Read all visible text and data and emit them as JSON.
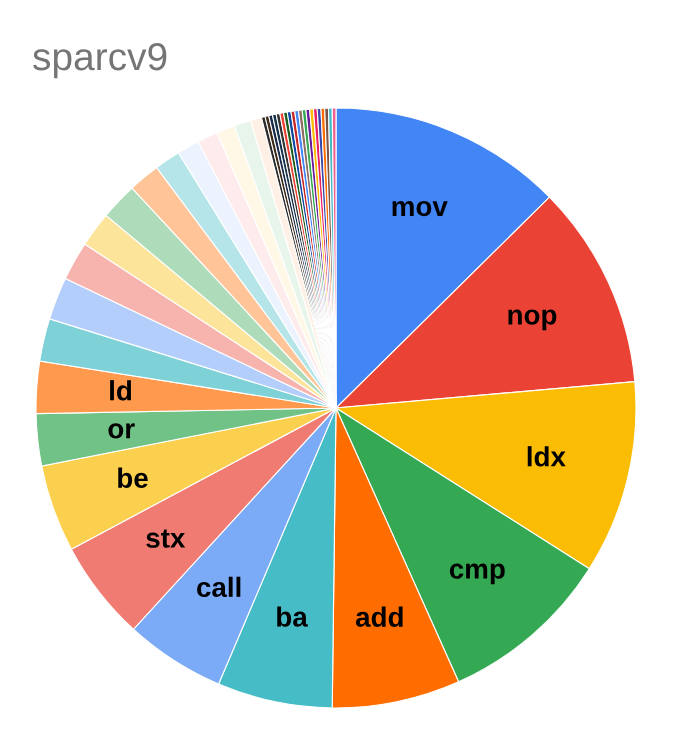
{
  "chart_data": {
    "type": "pie",
    "title": "sparcv9",
    "categories": [
      "mov",
      "nop",
      "ldx",
      "cmp",
      "add",
      "ba",
      "call",
      "stx",
      "be",
      "or",
      "ld",
      null,
      null,
      null,
      null,
      null,
      null,
      null,
      null,
      null,
      null,
      null,
      null,
      null,
      null,
      null,
      null,
      null,
      null,
      null,
      null,
      null,
      null,
      null,
      null,
      null,
      null,
      null,
      null,
      null,
      null,
      null,
      null
    ],
    "values": [
      12.6,
      11.0,
      10.4,
      9.3,
      6.9,
      6.2,
      5.4,
      5.4,
      4.7,
      2.8,
      2.8,
      2.3,
      2.3,
      2.1,
      1.9,
      2.0,
      1.7,
      1.4,
      1.2,
      1.1,
      1.0,
      0.9,
      0.6,
      0.2,
      0.2,
      0.2,
      0.2,
      0.2,
      0.2,
      0.2,
      0.2,
      0.2,
      0.2,
      0.2,
      0.2,
      0.2,
      0.2,
      0.2,
      0.2,
      0.2,
      0.2,
      0.2,
      0.2
    ],
    "colors": [
      "#4285f4",
      "#ea4335",
      "#fbbc04",
      "#34a853",
      "#ff6d01",
      "#46bdc6",
      "#7baaf7",
      "#f07b72",
      "#fcd04f",
      "#71c287",
      "#ff994d",
      "#7ed1d7",
      "#b3cefb",
      "#f7b4ae",
      "#fde49b",
      "#aedcba",
      "#ffc599",
      "#b5e5e8",
      "#ecf3fe",
      "#fdeceb",
      "#fff8e6",
      "#e8f5eb",
      "#fff0e6",
      "#2b2b2b",
      "#3c2a1a",
      "#1a2b4a",
      "#17324d",
      "#333333",
      "#ea4335",
      "#1b5e20",
      "#0d47a1",
      "#c62828",
      "#4285f4",
      "#8d6e63",
      "#34a853",
      "#6a1b9a",
      "#fbbc04",
      "#e91e63",
      "#3949ab",
      "#ff6d01",
      "#795548",
      "#46bdc6",
      "#f06292"
    ]
  }
}
